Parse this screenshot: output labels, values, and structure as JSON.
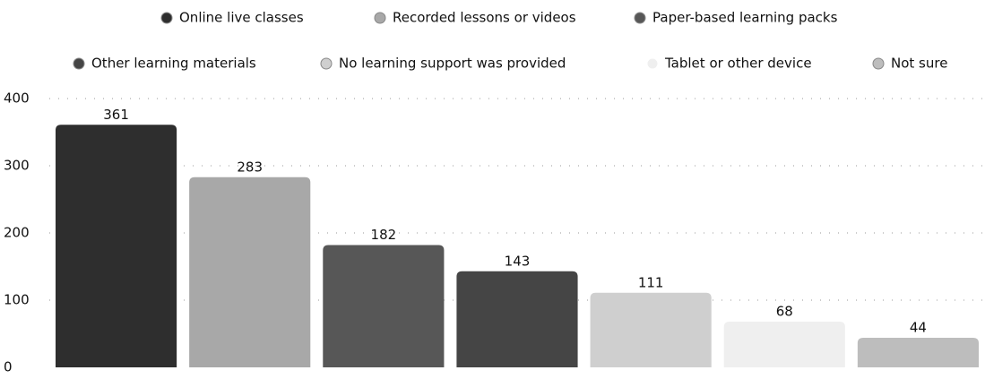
{
  "chart_data": {
    "type": "bar",
    "categories": [
      "Online live classes",
      "Recorded lessons or videos",
      "Paper-based learning packs",
      "Other learning materials",
      "No learning support was provided",
      "Tablet or other device",
      "Not sure"
    ],
    "values": [
      361,
      283,
      182,
      143,
      111,
      68,
      44
    ],
    "colors": [
      "#2e2e2e",
      "#a8a8a8",
      "#575757",
      "#454545",
      "#cfcfcf",
      "#efefef",
      "#bdbdbd"
    ],
    "ylim": [
      0,
      400
    ],
    "yticks": [
      0,
      100,
      200,
      300,
      400
    ],
    "grid": true
  }
}
